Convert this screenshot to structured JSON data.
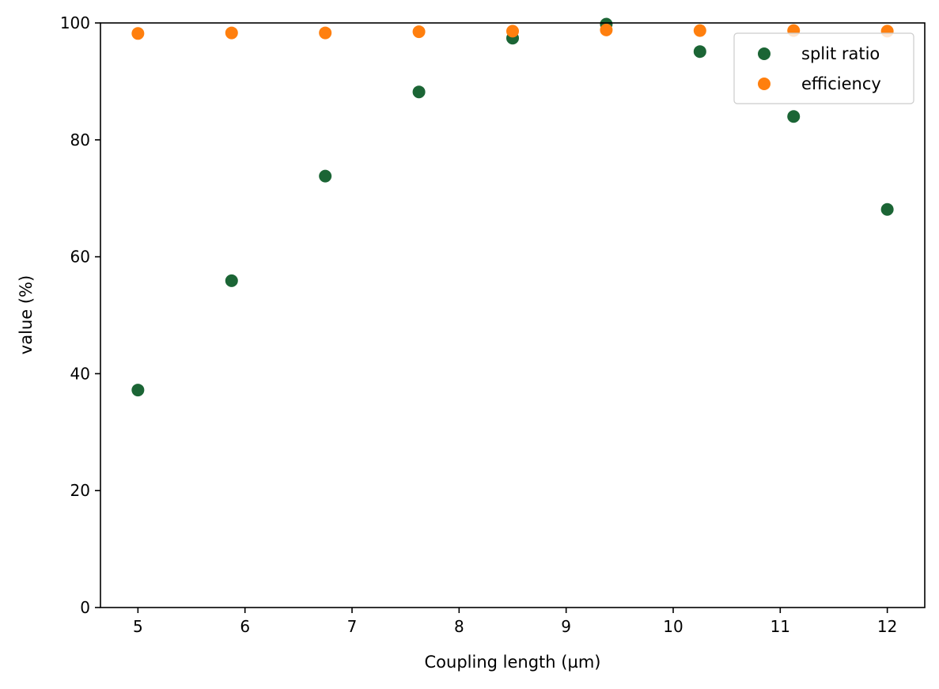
{
  "chart_data": {
    "type": "scatter",
    "title": "",
    "xlabel": "Coupling length (µm)",
    "ylabel": "value (%)",
    "xlim": [
      4.65,
      12.35
    ],
    "ylim": [
      0,
      100
    ],
    "xticks": [
      "5",
      "6",
      "7",
      "8",
      "9",
      "10",
      "11",
      "12"
    ],
    "yticks": [
      "0",
      "20",
      "40",
      "60",
      "80",
      "100"
    ],
    "x": [
      5.0,
      5.875,
      6.75,
      7.625,
      8.5,
      9.375,
      10.25,
      11.125,
      12.0
    ],
    "series": [
      {
        "name": "split ratio",
        "color": "#1b6535",
        "values": [
          37.2,
          55.9,
          73.8,
          88.2,
          97.4,
          99.8,
          95.1,
          84.0,
          68.1
        ]
      },
      {
        "name": "efficiency",
        "color": "#ff7f0e",
        "values": [
          98.2,
          98.3,
          98.3,
          98.5,
          98.6,
          98.8,
          98.7,
          98.7,
          98.6
        ]
      }
    ],
    "grid": false,
    "legend_position": "top-right"
  }
}
